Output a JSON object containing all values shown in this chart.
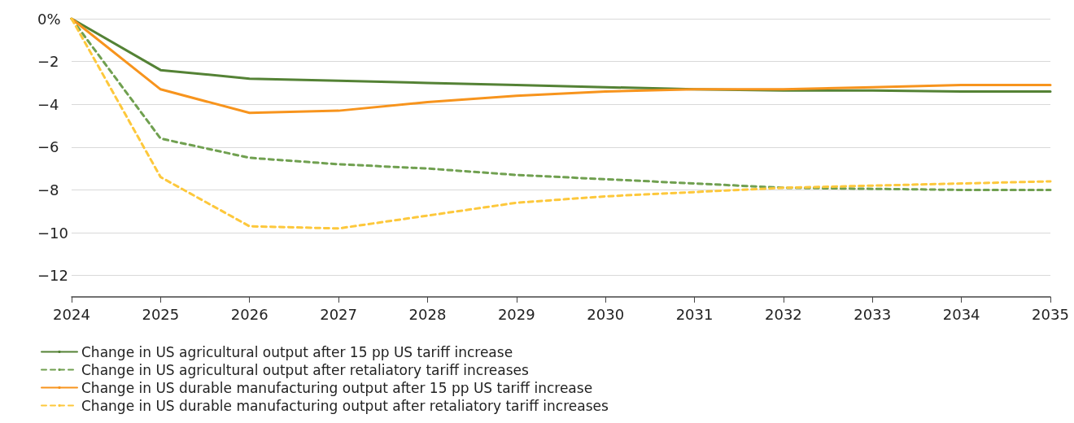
{
  "chart_data": {
    "type": "line",
    "categories": [
      "2024",
      "2025",
      "2026",
      "2027",
      "2028",
      "2029",
      "2030",
      "2031",
      "2032",
      "2033",
      "2034",
      "2035"
    ],
    "series": [
      {
        "name": "Change in US agricultural output after 15 pp US tariff increase",
        "color": "#548235",
        "line_style": "solid",
        "values": [
          0,
          -2.4,
          -2.8,
          -2.9,
          -3.0,
          -3.1,
          -3.2,
          -3.3,
          -3.35,
          -3.35,
          -3.4,
          -3.4
        ]
      },
      {
        "name": "Change in US agricultural output after retaliatory tariff increases",
        "color": "#70a050",
        "line_style": "dashed",
        "values": [
          0,
          -5.6,
          -6.5,
          -6.8,
          -7.0,
          -7.3,
          -7.5,
          -7.7,
          -7.9,
          -7.95,
          -8.0,
          -8.0
        ]
      },
      {
        "name": "Change in US durable manufacturing output after 15 pp US tariff increase",
        "color": "#f7941d",
        "line_style": "solid",
        "values": [
          0,
          -3.3,
          -4.4,
          -4.3,
          -3.9,
          -3.6,
          -3.4,
          -3.3,
          -3.3,
          -3.2,
          -3.1,
          -3.1
        ]
      },
      {
        "name": "Change in US durable manufacturing output after retaliatory tariff increases",
        "color": "#fdc83c",
        "line_style": "dashed",
        "values": [
          0,
          -7.4,
          -9.7,
          -9.8,
          -9.2,
          -8.6,
          -8.3,
          -8.1,
          -7.9,
          -7.8,
          -7.7,
          -7.6
        ]
      }
    ],
    "ylim": [
      -13,
      0
    ],
    "yticks": [
      {
        "value": 0,
        "label": "0%"
      },
      {
        "value": -2,
        "label": "−2"
      },
      {
        "value": -4,
        "label": "−4"
      },
      {
        "value": -6,
        "label": "−6"
      },
      {
        "value": -8,
        "label": "−8"
      },
      {
        "value": -10,
        "label": "−10"
      },
      {
        "value": -12,
        "label": "−12"
      }
    ],
    "grid": "y",
    "legend": "bottom left",
    "marker": "none"
  }
}
